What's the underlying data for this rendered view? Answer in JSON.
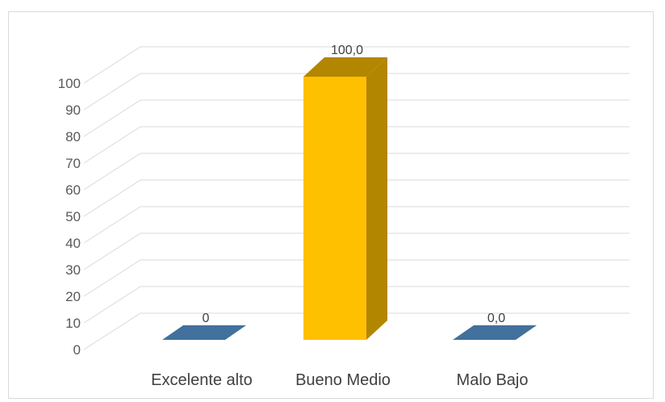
{
  "chart_data": {
    "type": "bar",
    "style": "3d-column",
    "categories": [
      "Excelente alto",
      "Bueno Medio",
      "Malo Bajo"
    ],
    "values": [
      0,
      100,
      0
    ],
    "data_labels": [
      "0",
      "100,0",
      "0,0"
    ],
    "colors": [
      "#41719c",
      "#ffc000",
      "#41719c"
    ],
    "side_colors": [
      "#2e5478",
      "#b38600",
      "#2e5478"
    ],
    "ylim": [
      0,
      100
    ],
    "yticks": [
      "0",
      "10",
      "20",
      "30",
      "40",
      "50",
      "60",
      "70",
      "80",
      "90",
      "100"
    ],
    "grid": true,
    "legend": "none"
  }
}
